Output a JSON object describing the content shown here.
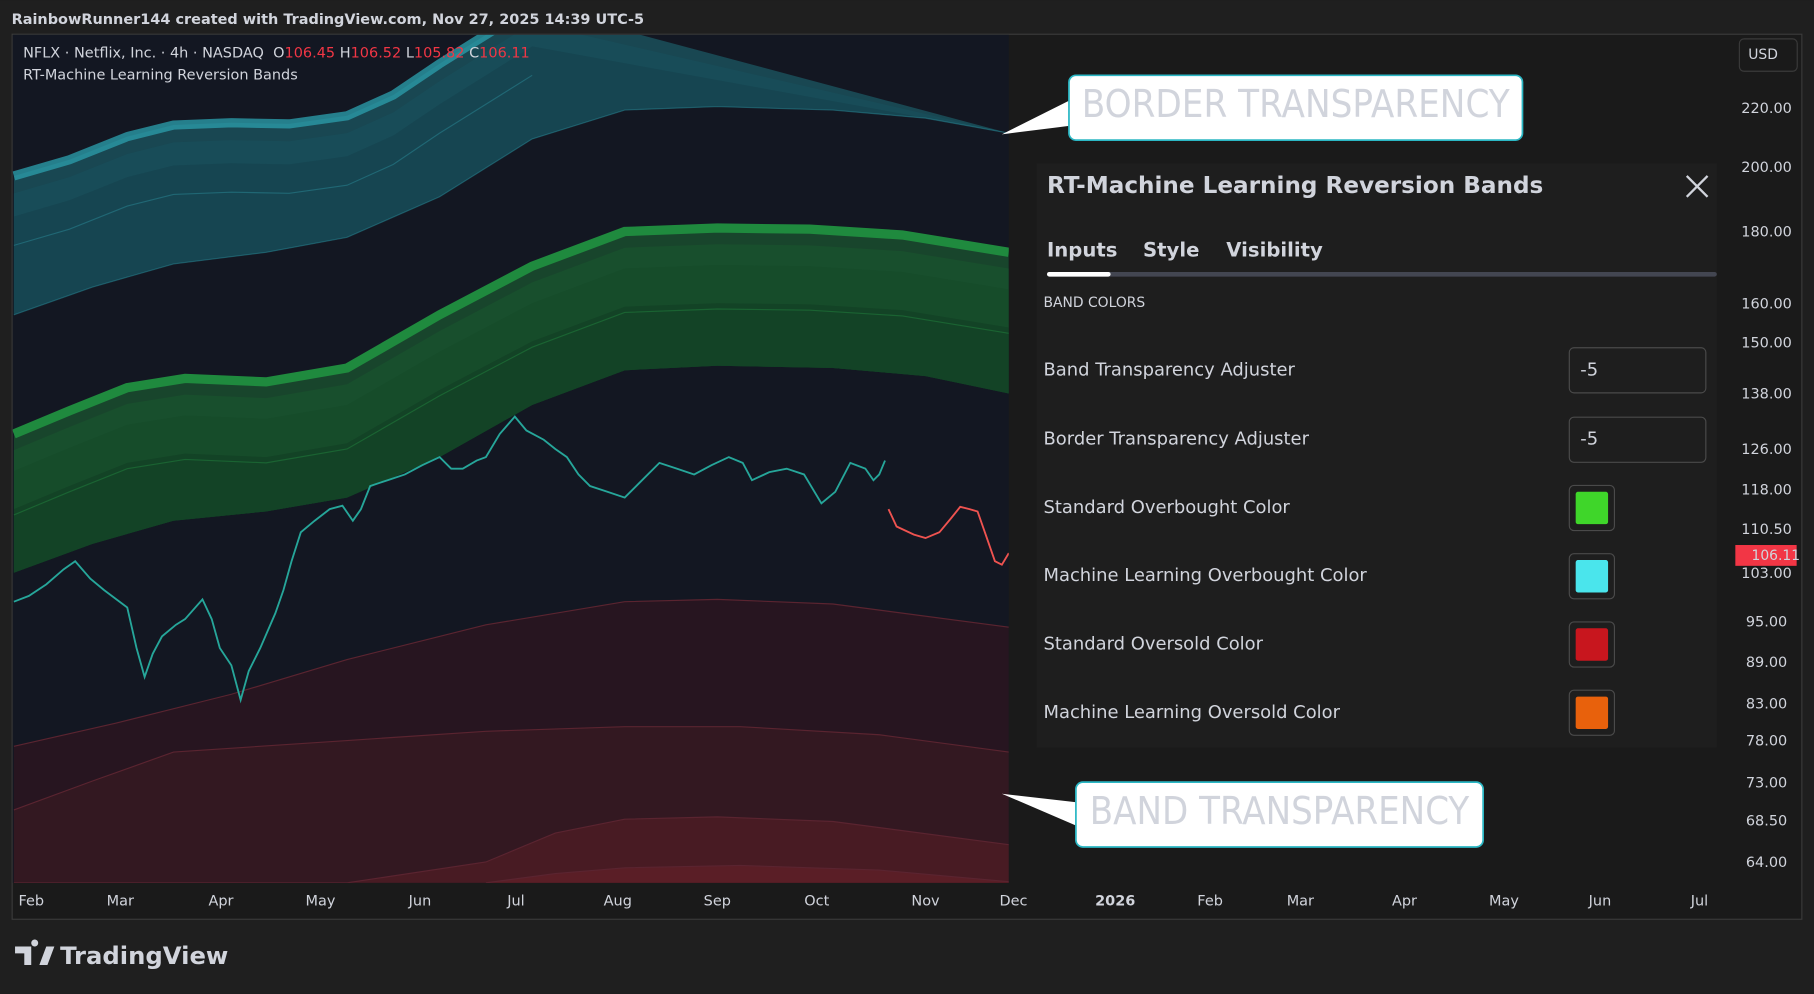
{
  "header": {
    "attribution": "RainbowRunner144 created with TradingView.com, Nov 27, 2025 14:39 UTC-5"
  },
  "legend": {
    "symbol": "NFLX · Netflix, Inc. · 4h · NASDAQ",
    "ohlc": [
      {
        "label": "O",
        "value": "106.45"
      },
      {
        "label": "H",
        "value": "106.52"
      },
      {
        "label": "L",
        "value": "105.82"
      },
      {
        "label": "C",
        "value": "106.11"
      }
    ],
    "indicator": "RT-Machine Learning Reversion Bands"
  },
  "currency": "USD",
  "price_axis": [
    "220.00",
    "200.00",
    "180.00",
    "160.00",
    "150.00",
    "138.00",
    "126.00",
    "118.00",
    "110.50",
    "103.00",
    "95.00",
    "89.00",
    "83.00",
    "78.00",
    "73.00",
    "68.50",
    "64.00"
  ],
  "last_price": "106.11",
  "time_axis": [
    "Feb",
    "Mar",
    "Apr",
    "May",
    "Jun",
    "Jul",
    "Aug",
    "Sep",
    "Oct",
    "Nov",
    "Dec",
    "2026",
    "Feb",
    "Mar",
    "Apr",
    "May",
    "Jun",
    "Jul"
  ],
  "dialog": {
    "title": "RT-Machine Learning Reversion Bands",
    "tabs": [
      "Inputs",
      "Style",
      "Visibility"
    ],
    "section": "BAND COLORS",
    "fields": [
      {
        "label": "Band Transparency Adjuster",
        "value": "-5"
      },
      {
        "label": "Border Transparency Adjuster",
        "value": "-5"
      }
    ],
    "colors": [
      {
        "label": "Standard Overbought Color",
        "color": "#3fd62a"
      },
      {
        "label": "Machine Learning Overbought Color",
        "color": "#4ae5ec"
      },
      {
        "label": "Standard Oversold Color",
        "color": "#c8161e"
      },
      {
        "label": "Machine Learning Oversold Color",
        "color": "#e8610c"
      }
    ]
  },
  "callouts": [
    "BORDER TRANSPARENCY",
    "BAND TRANSPARENCY"
  ],
  "brand": "TradingView"
}
